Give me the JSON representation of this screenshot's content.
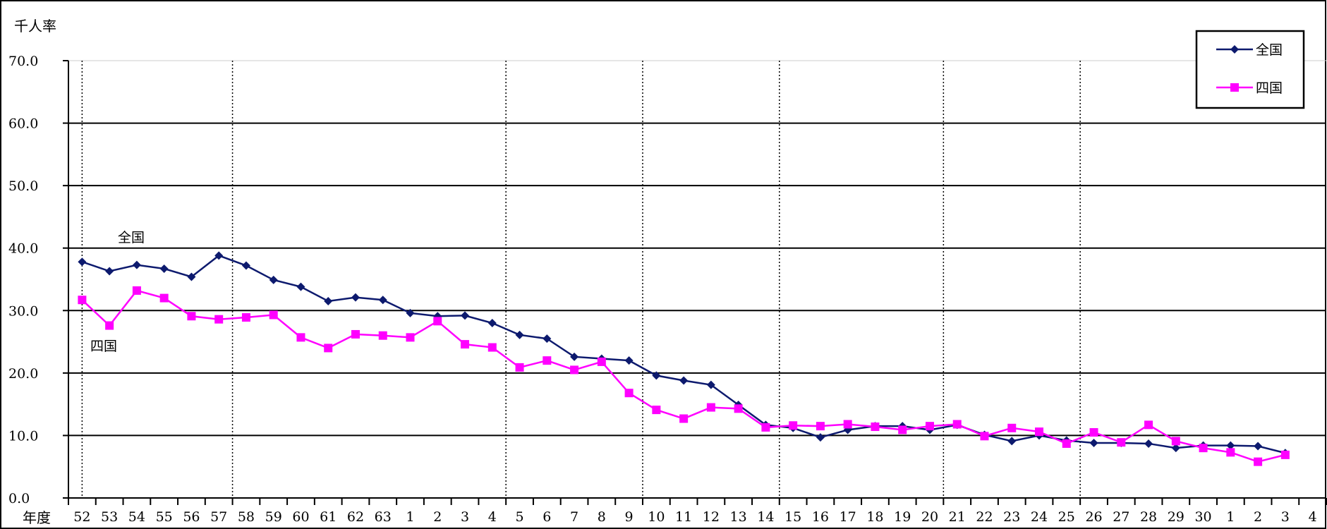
{
  "chart_data": {
    "type": "line",
    "ylabel": "千人率",
    "xlabel": "年度",
    "ylim": [
      0,
      70
    ],
    "yticks": [
      "0.0",
      "10.0",
      "20.0",
      "30.0",
      "40.0",
      "50.0",
      "60.0",
      "70.0"
    ],
    "categories": [
      "52",
      "53",
      "54",
      "55",
      "56",
      "57",
      "58",
      "59",
      "60",
      "61",
      "62",
      "63",
      "1",
      "2",
      "3",
      "4",
      "5",
      "6",
      "7",
      "8",
      "9",
      "10",
      "11",
      "12",
      "13",
      "14",
      "15",
      "16",
      "17",
      "18",
      "19",
      "20",
      "21",
      "22",
      "23",
      "24",
      "25",
      "26",
      "27",
      "28",
      "29",
      "30",
      "1",
      "2",
      "3",
      "4"
    ],
    "series": [
      {
        "name": "全国",
        "color": "#0d1a6e",
        "marker": "diamond",
        "values": [
          37.8,
          36.3,
          37.3,
          36.7,
          35.4,
          38.8,
          37.2,
          34.9,
          33.8,
          31.5,
          32.1,
          31.7,
          29.6,
          29.1,
          29.2,
          28.0,
          26.1,
          25.5,
          22.6,
          22.3,
          22.0,
          19.6,
          18.8,
          18.1,
          14.9,
          11.7,
          11.2,
          9.7,
          10.9,
          11.5,
          11.5,
          10.9,
          11.7,
          10.1,
          9.1,
          10.0,
          9.2,
          8.8,
          8.8,
          8.7,
          8.0,
          8.4,
          8.4,
          8.3,
          7.2,
          null
        ]
      },
      {
        "name": "四国",
        "color": "#ff00ff",
        "marker": "square",
        "values": [
          31.7,
          27.6,
          33.2,
          32.0,
          29.1,
          28.6,
          28.9,
          29.3,
          25.7,
          24.0,
          26.2,
          26.0,
          25.7,
          28.3,
          24.6,
          24.1,
          20.9,
          22.0,
          20.5,
          21.8,
          16.8,
          14.1,
          12.7,
          14.5,
          14.3,
          11.3,
          11.6,
          11.5,
          11.8,
          11.4,
          10.9,
          11.5,
          11.8,
          9.9,
          11.2,
          10.6,
          8.7,
          10.5,
          8.9,
          11.7,
          9.1,
          8.0,
          7.3,
          5.8,
          6.9,
          null
        ]
      }
    ],
    "annotations": [
      "全国",
      "四国"
    ],
    "legend": {
      "position": "top-right"
    },
    "grid": true
  }
}
